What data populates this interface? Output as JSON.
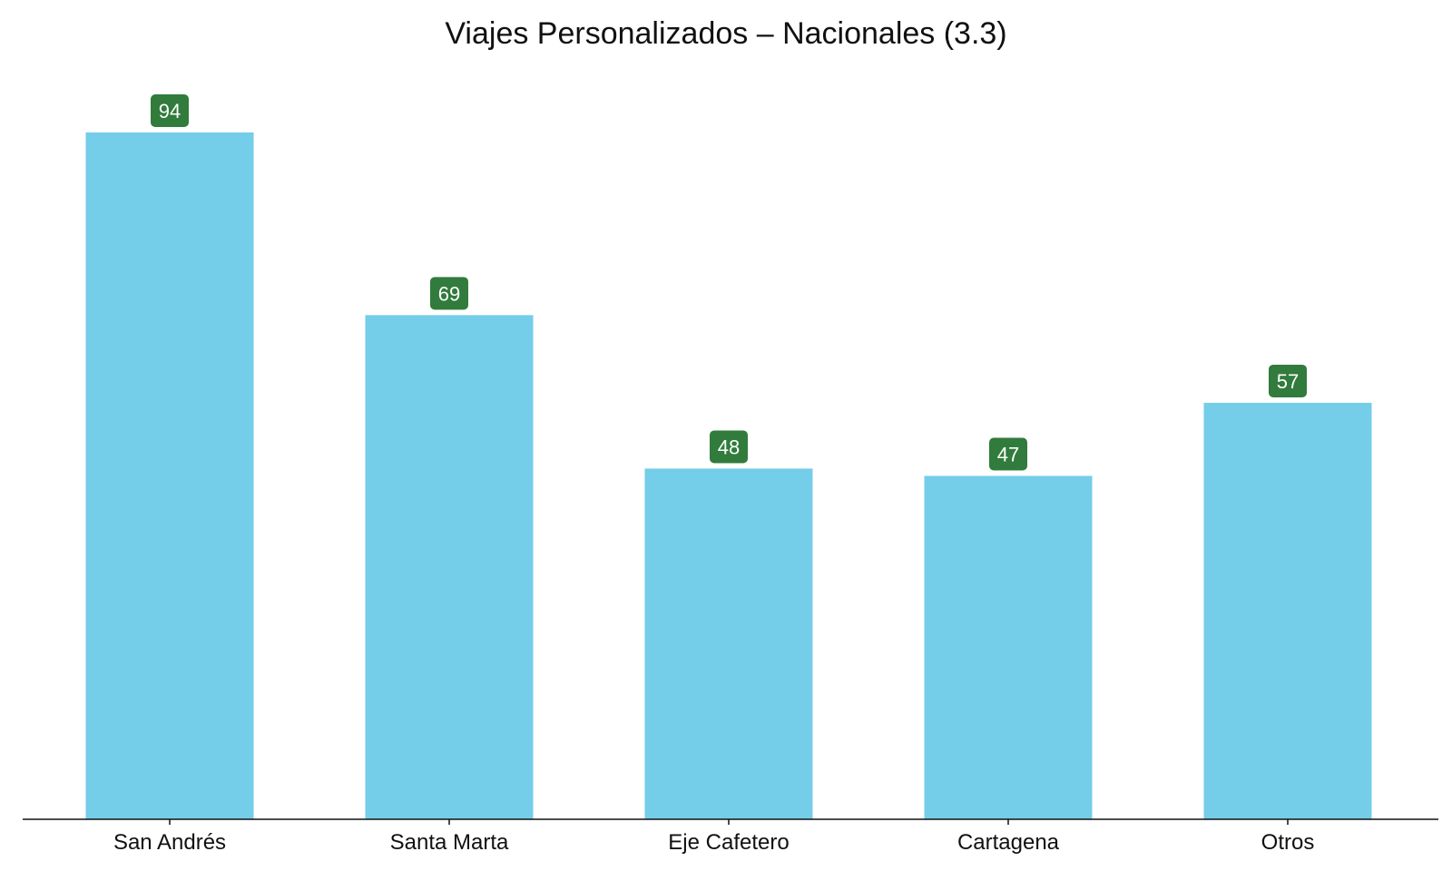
{
  "chart_data": {
    "type": "bar",
    "title": "Viajes Personalizados – Nacionales (3.3)",
    "xlabel": "",
    "ylabel": "",
    "categories": [
      "San Andrés",
      "Santa Marta",
      "Eje Cafetero",
      "Cartagena",
      "Otros"
    ],
    "values": [
      94,
      69,
      48,
      47,
      57
    ],
    "ylim": [
      0,
      100
    ],
    "grid": false,
    "legend": "none",
    "bar_color": "#74cde9",
    "label_bg_color": "#317b3c",
    "label_text_color": "#ffffff",
    "axis_color": "#111111"
  }
}
